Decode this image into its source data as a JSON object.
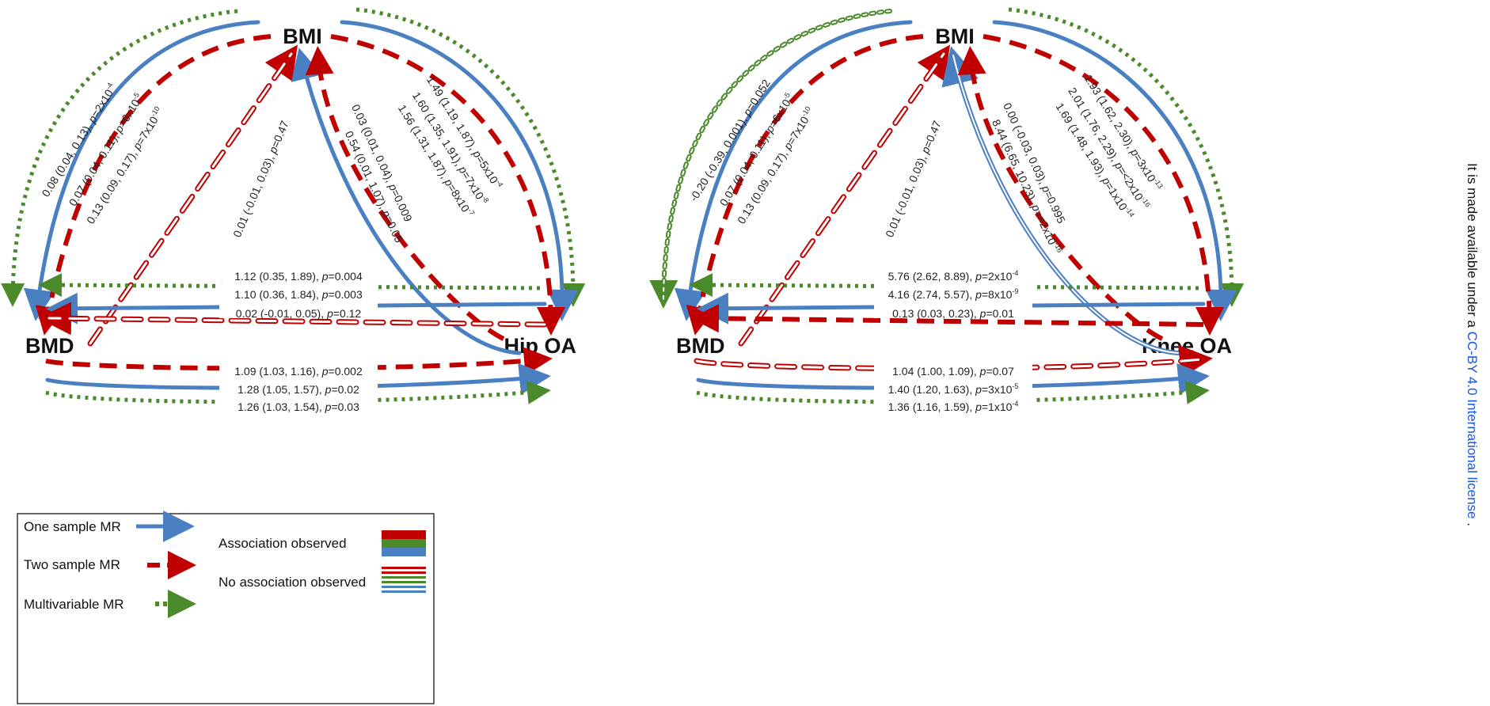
{
  "colors": {
    "blue": "#4a7fc1",
    "red": "#c00000",
    "green": "#4a8a2a",
    "side_blue": "#1a56db"
  },
  "panels": [
    {
      "nodes": {
        "top": "BMI",
        "left": "BMD",
        "right": "Hip OA"
      },
      "labels": [
        {
          "id": "bmi-bmd-multi",
          "est": "0.08 (0.04, 0.13), ",
          "p": "2x10",
          "exp": "-4"
        },
        {
          "id": "bmi-bmd-one",
          "est": "0.07 (0.04, 0.11), ",
          "p": "6x10",
          "exp": "-5"
        },
        {
          "id": "bmi-bmd-two",
          "est": "0.13 (0.09, 0.17), ",
          "p": "7x10",
          "exp": "-10"
        },
        {
          "id": "bmi-oa-multi",
          "est": "1.49 (1.19, 1.87), ",
          "p": "5x10",
          "exp": "-4"
        },
        {
          "id": "bmi-oa-one",
          "est": "1.60 (1.35, 1.91), ",
          "p": "7x10",
          "exp": "-8"
        },
        {
          "id": "bmi-oa-two",
          "est": "1.56 (1.31, 1.87), ",
          "p": "8x10",
          "exp": "-7"
        },
        {
          "id": "bmd-bmi",
          "est": "0.01 (-0.01, 0.03), ",
          "p": "0.47",
          "exp": ""
        },
        {
          "id": "oa-bmi-one",
          "est": "0.03 (0.01, 0.04), ",
          "p": "0.009",
          "exp": ""
        },
        {
          "id": "oa-bmi-two",
          "est": "0.54 (0.01, 1.07), ",
          "p": "0.05",
          "exp": ""
        },
        {
          "id": "oa-bmd-multi",
          "est": "1.12 (0.35, 1.89), ",
          "p": "0.004",
          "exp": ""
        },
        {
          "id": "oa-bmd-one",
          "est": "1.10 (0.36, 1.84), ",
          "p": "0.003",
          "exp": ""
        },
        {
          "id": "oa-bmd-two",
          "est": "0.02 (-0.01, 0.05), ",
          "p": "0.12",
          "exp": ""
        },
        {
          "id": "bmd-oa-two",
          "est": "1.09 (1.03, 1.16), ",
          "p": "0.002",
          "exp": ""
        },
        {
          "id": "bmd-oa-one",
          "est": "1.28 (1.05, 1.57), ",
          "p": "0.02",
          "exp": ""
        },
        {
          "id": "bmd-oa-multi",
          "est": "1.26 (1.03, 1.54), ",
          "p": "0.03",
          "exp": ""
        }
      ]
    },
    {
      "nodes": {
        "top": "BMI",
        "left": "BMD",
        "right": "Knee OA"
      },
      "labels": [
        {
          "id": "bmi-bmd-multi",
          "est": "-0.20 (-0.39, 0.001), ",
          "p": "0.052",
          "exp": ""
        },
        {
          "id": "bmi-bmd-one",
          "est": "0.07 (0.04, 0.11), ",
          "p": "6x10",
          "exp": "-5"
        },
        {
          "id": "bmi-bmd-two",
          "est": "0.13 (0.09, 0.17), ",
          "p": "7x10",
          "exp": "-10"
        },
        {
          "id": "bmi-oa-multi",
          "est": "1.93 (1.62, 2.30), ",
          "p": "3x10",
          "exp": "-13"
        },
        {
          "id": "bmi-oa-one",
          "est": "2.01 (1.76, 2.29), ",
          "p": "<2x10",
          "exp": "-16"
        },
        {
          "id": "bmi-oa-two",
          "est": "1.69 (1.48, 1.93), ",
          "p": "1x10",
          "exp": "-14"
        },
        {
          "id": "bmd-bmi",
          "est": "0.01 (-0.01, 0.03), ",
          "p": "0.47",
          "exp": ""
        },
        {
          "id": "oa-bmi-one",
          "est": "0.00 (-0.03, 0.03), ",
          "p": "0.995",
          "exp": ""
        },
        {
          "id": "oa-bmi-two",
          "est": "8.44 (6.65, 10.23), ",
          "p": "<2x10",
          "exp": "-16"
        },
        {
          "id": "oa-bmd-multi",
          "est": "5.76 (2.62, 8.89), ",
          "p": "2x10",
          "exp": "-4"
        },
        {
          "id": "oa-bmd-one",
          "est": "4.16 (2.74, 5.57), ",
          "p": "8x10",
          "exp": "-9"
        },
        {
          "id": "oa-bmd-two",
          "est": "0.13 (0.03, 0.23), ",
          "p": "0.01",
          "exp": ""
        },
        {
          "id": "bmd-oa-two",
          "est": "1.04 (1.00, 1.09), ",
          "p": "0.07",
          "exp": ""
        },
        {
          "id": "bmd-oa-one",
          "est": "1.40 (1.20, 1.63), ",
          "p": "3x10",
          "exp": "-5"
        },
        {
          "id": "bmd-oa-multi",
          "est": "1.36 (1.16, 1.59), ",
          "p": "1x10",
          "exp": "-4"
        }
      ]
    }
  ],
  "p_prefix": "p",
  "p_eq": "=",
  "legend": {
    "one_sample": "One sample MR",
    "two_sample": "Two sample MR",
    "multivariable": "Multivariable MR",
    "association": "Association observed",
    "no_association": "No association observed"
  },
  "side_text": {
    "black": "It is made available under a",
    "blue": "CC-BY 4.0 International license",
    "end": "."
  }
}
